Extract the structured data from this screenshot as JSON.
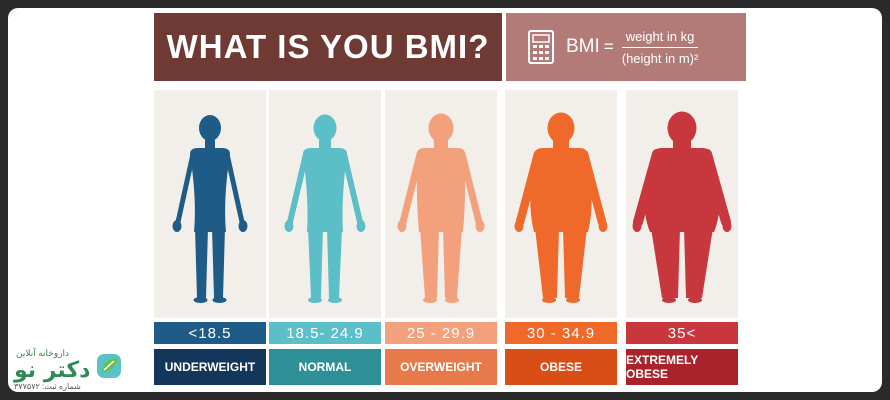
{
  "title": "WHAT IS YOU BMI?",
  "formula": {
    "label": "BMI",
    "equals": "=",
    "numerator": "weight in kg",
    "denominator": "(height in m)²"
  },
  "categories": [
    {
      "range": "<18.5",
      "name": "UNDERWEIGHT",
      "figure_color": "#1e5b86",
      "range_bg": "#1e5b86",
      "name_bg": "#14365a"
    },
    {
      "range": "18.5- 24.9",
      "name": "NORMAL",
      "figure_color": "#5cbec7",
      "range_bg": "#5cbec7",
      "name_bg": "#2f8f96"
    },
    {
      "range": "25 - 29.9",
      "name": "OVERWEIGHT",
      "figure_color": "#f3a17c",
      "range_bg": "#f3a17c",
      "name_bg": "#e77a4a"
    },
    {
      "range": "30 - 34.9",
      "name": "OBESE",
      "figure_color": "#ef6a2a",
      "range_bg": "#ef6a2a",
      "name_bg": "#d84e16"
    },
    {
      "range": "35<",
      "name": "EXTREMELY OBESE",
      "figure_color": "#c8373e",
      "range_bg": "#c8373e",
      "name_bg": "#a8242a"
    }
  ],
  "logo": {
    "tagline": "داروخانه آنلاین",
    "brand": "دکتر نو",
    "registration": "شماره ثبت: ۳۷۷۵۷۲"
  }
}
